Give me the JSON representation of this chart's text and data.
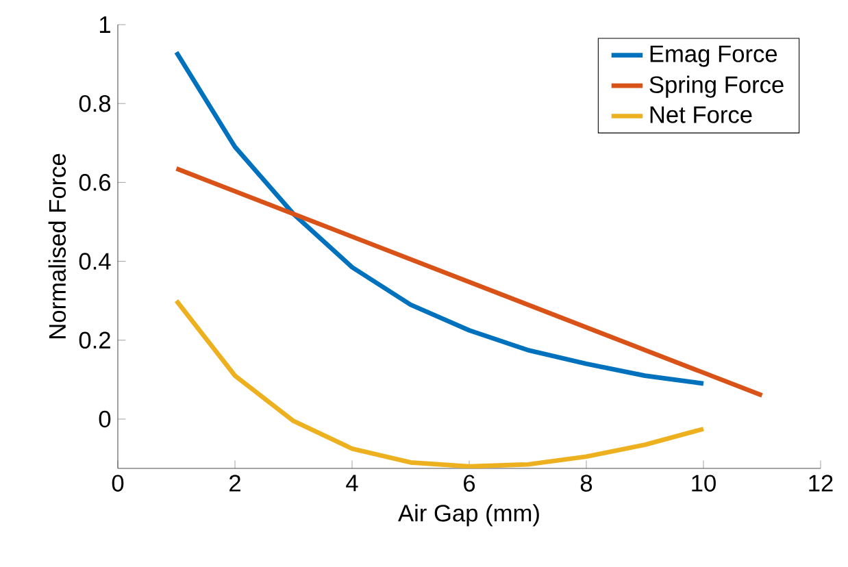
{
  "chart_data": {
    "type": "line",
    "xlabel": "Air Gap (mm)",
    "ylabel": "Normalised Force",
    "x": [
      1,
      2,
      3,
      4,
      5,
      6,
      7,
      8,
      9,
      10
    ],
    "xlim": [
      0,
      12
    ],
    "ylim": [
      -0.125,
      1
    ],
    "xticks": [
      0,
      2,
      4,
      6,
      8,
      10,
      12
    ],
    "yticks": [
      0,
      0.2,
      0.4,
      0.6,
      0.8,
      1
    ],
    "legend": "top right",
    "grid": false,
    "marker": "none",
    "line_style": "solid",
    "series": [
      {
        "name": "Emag Force",
        "color": "#0072bd",
        "values": [
          0.93,
          0.69,
          0.52,
          0.385,
          0.29,
          0.225,
          0.175,
          0.14,
          0.11,
          0.09
        ]
      },
      {
        "name": "Spring Force",
        "color": "#d95319",
        "x": [
          1,
          11
        ],
        "values": [
          0.635,
          0.06
        ]
      },
      {
        "name": "Net Force",
        "color": "#edb120",
        "values": [
          0.3,
          0.11,
          -0.005,
          -0.075,
          -0.11,
          -0.12,
          -0.115,
          -0.095,
          -0.065,
          -0.025
        ]
      }
    ]
  }
}
